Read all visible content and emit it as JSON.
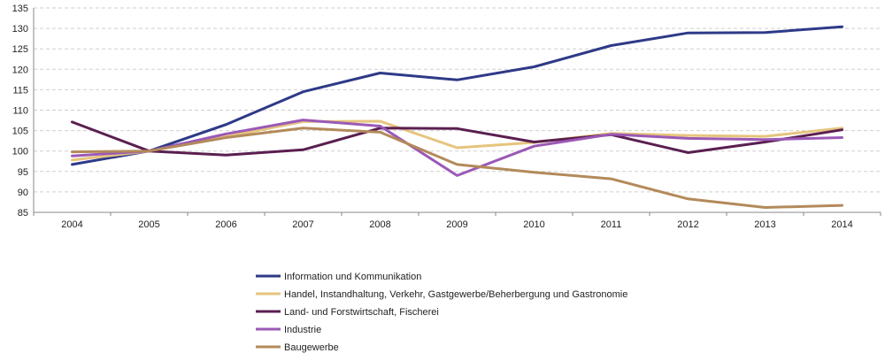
{
  "chart_data": {
    "type": "line",
    "title": "",
    "xlabel": "",
    "ylabel": "",
    "x": [
      "2004",
      "2005",
      "2006",
      "2007",
      "2008",
      "2009",
      "2010",
      "2011",
      "2012",
      "2013",
      "2014"
    ],
    "ylim": [
      85,
      135
    ],
    "yticks": [
      85,
      90,
      95,
      100,
      105,
      110,
      115,
      120,
      125,
      130,
      135
    ],
    "grid": "horizontal",
    "legend_position": "bottom-center",
    "series": [
      {
        "name": "Information und Kommunikation",
        "color": "#2e3a87",
        "values": [
          96.7,
          100,
          106.5,
          114.5,
          119.1,
          117.4,
          120.6,
          125.8,
          128.9,
          129.0,
          130.4
        ]
      },
      {
        "name": "Handel, Instandhaltung, Verkehr, Gastgewerbe/Beherbergung und Gastronomie",
        "color": "#e6c47e",
        "values": [
          97.8,
          100,
          103.5,
          107.2,
          107.3,
          100.8,
          102.1,
          104.3,
          103.8,
          103.6,
          105.6
        ]
      },
      {
        "name": "Land- und Forstwirtschaft, Fischerei",
        "color": "#5a1f50",
        "values": [
          107.1,
          100,
          99.0,
          100.3,
          105.6,
          105.5,
          102.2,
          104.0,
          99.6,
          102.2,
          105.2
        ]
      },
      {
        "name": "Industrie",
        "color": "#9b59b6",
        "values": [
          98.8,
          100,
          104.2,
          107.6,
          106.1,
          94.0,
          101.2,
          104.1,
          103.1,
          102.8,
          103.3
        ]
      },
      {
        "name": "Baugewerbe",
        "color": "#b38a5a",
        "values": [
          99.8,
          100,
          103.3,
          105.6,
          104.6,
          96.7,
          94.8,
          93.2,
          88.3,
          86.2,
          86.7
        ]
      }
    ]
  }
}
